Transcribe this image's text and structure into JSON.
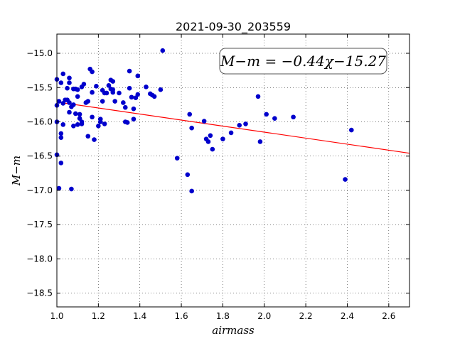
{
  "chart_data": {
    "type": "scatter",
    "title": "2021-09-30_203559",
    "xlabel": "airmass",
    "ylabel": "M−m",
    "xlim": [
      1.0,
      2.7
    ],
    "ylim": [
      -18.7,
      -14.72
    ],
    "xticks": [
      1.0,
      1.2,
      1.4,
      1.6,
      1.8,
      2.0,
      2.2,
      2.4,
      2.6
    ],
    "xtick_labels": [
      "1.0",
      "1.2",
      "1.4",
      "1.6",
      "1.8",
      "2.0",
      "2.2",
      "2.4",
      "2.6"
    ],
    "yticks": [
      -15.0,
      -15.5,
      -16.0,
      -16.5,
      -17.0,
      -17.5,
      -18.0,
      -18.5
    ],
    "ytick_labels": [
      "−15.0",
      "−15.5",
      "−16.0",
      "−16.5",
      "−17.0",
      "−17.5",
      "−18.0",
      "−18.5"
    ],
    "grid": true,
    "annotation": "M−m = −0.44χ−15.27",
    "fit_line": {
      "slope": -0.44,
      "intercept": -15.27,
      "color": "#ff0000"
    },
    "series": [
      {
        "marker_color": "#0000cc",
        "x": [
          1.0,
          1.0,
          1.0,
          1.0,
          1.01,
          1.01,
          1.02,
          1.02,
          1.02,
          1.02,
          1.03,
          1.03,
          1.03,
          1.04,
          1.05,
          1.05,
          1.06,
          1.06,
          1.06,
          1.06,
          1.07,
          1.07,
          1.08,
          1.08,
          1.08,
          1.09,
          1.09,
          1.1,
          1.1,
          1.1,
          1.11,
          1.11,
          1.12,
          1.12,
          1.12,
          1.13,
          1.14,
          1.15,
          1.15,
          1.16,
          1.17,
          1.17,
          1.17,
          1.18,
          1.19,
          1.2,
          1.21,
          1.21,
          1.22,
          1.22,
          1.23,
          1.23,
          1.24,
          1.25,
          1.26,
          1.26,
          1.27,
          1.27,
          1.27,
          1.28,
          1.3,
          1.32,
          1.33,
          1.33,
          1.34,
          1.35,
          1.35,
          1.36,
          1.37,
          1.37,
          1.38,
          1.39,
          1.39,
          1.43,
          1.45,
          1.46,
          1.47,
          1.5,
          1.51,
          1.58,
          1.63,
          1.64,
          1.65,
          1.65,
          1.71,
          1.72,
          1.73,
          1.74,
          1.75,
          1.8,
          1.84,
          1.88,
          1.91,
          1.97,
          1.98,
          2.01,
          2.05,
          2.14,
          2.39,
          2.42
        ],
        "y": [
          -15.38,
          -15.76,
          -16.0,
          -16.48,
          -15.7,
          -16.97,
          -15.43,
          -16.17,
          -16.23,
          -16.6,
          -15.3,
          -15.73,
          -16.04,
          -15.68,
          -15.51,
          -15.68,
          -15.36,
          -15.43,
          -15.72,
          -15.86,
          -15.78,
          -16.98,
          -15.52,
          -15.75,
          -16.06,
          -15.52,
          -15.88,
          -15.53,
          -15.63,
          -16.04,
          -15.89,
          -15.95,
          -15.49,
          -16.0,
          -16.03,
          -15.45,
          -15.72,
          -15.7,
          -16.21,
          -15.23,
          -15.27,
          -15.57,
          -15.93,
          -16.26,
          -15.48,
          -16.06,
          -15.96,
          -16.0,
          -15.54,
          -15.7,
          -15.58,
          -16.03,
          -15.58,
          -15.47,
          -15.39,
          -15.52,
          -15.41,
          -15.53,
          -15.57,
          -15.7,
          -15.58,
          -15.72,
          -15.79,
          -16.0,
          -16.01,
          -15.26,
          -15.51,
          -15.64,
          -15.81,
          -15.96,
          -15.65,
          -15.33,
          -15.6,
          -15.49,
          -15.59,
          -15.61,
          -15.63,
          -15.53,
          -14.96,
          -16.53,
          -16.77,
          -15.89,
          -16.09,
          -17.01,
          -15.99,
          -16.25,
          -16.29,
          -16.2,
          -16.4,
          -16.25,
          -16.16,
          -16.05,
          -16.03,
          -15.63,
          -16.29,
          -15.89,
          -15.95,
          -15.93,
          -16.84,
          -16.12
        ]
      }
    ]
  }
}
